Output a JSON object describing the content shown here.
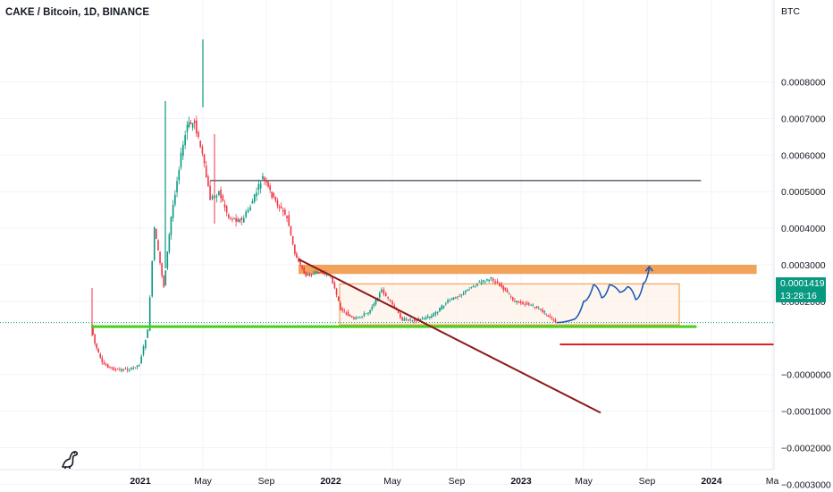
{
  "header": {
    "title": "CAKE / Bitcoin, 1D, BINANCE",
    "unit": "BTC"
  },
  "price_tag": {
    "price": "0.0001419",
    "countdown": "13:28:16",
    "color": "#089981"
  },
  "colors": {
    "up": "#089981",
    "down": "#f23645",
    "support": "#4cce1a",
    "resistance_band": "#f0923c",
    "trendline": "#8b1a1a",
    "projection": "#1c58b8",
    "red_line": "#e0201e",
    "resistance_line": "#131722"
  },
  "chart_data": {
    "type": "candlestick",
    "title": "CAKE / Bitcoin, 1D, BINANCE",
    "ylabel": "BTC",
    "ylim": [
      -0.00036,
      0.00092
    ],
    "grid": true,
    "xlabels": [
      "2021",
      "May",
      "Sep",
      "2022",
      "May",
      "Sep",
      "2023",
      "May",
      "Sep",
      "2024",
      "Ma"
    ],
    "xlabels_bold": [
      "2021",
      "2022",
      "2023",
      "2024"
    ],
    "yticks": [
      0.0008,
      0.0007,
      0.0006,
      0.0005,
      0.0004,
      0.0003,
      0.0002,
      0.0,
      -0.0001,
      -0.0002,
      -0.0003
    ],
    "ytick_labels": [
      "0.0008000",
      "0.0007000",
      "0.0006000",
      "0.0005000",
      "0.0004000",
      "0.0003000",
      "0.0002000",
      "−0.0000000",
      "−0.0001000",
      "−0.0002000",
      "−0.0003000"
    ],
    "price_path": [
      [
        "2020-09-29",
        0.000135
      ],
      [
        "2020-10-06",
        8.5e-05
      ],
      [
        "2020-10-20",
        3e-05
      ],
      [
        "2020-11-15",
        1.2e-05
      ],
      [
        "2020-12-15",
        1.5e-05
      ],
      [
        "2020-12-30",
        2.8e-05
      ],
      [
        "2021-01-15",
        0.00012
      ],
      [
        "2021-01-28",
        0.0004
      ],
      [
        "2021-02-15",
        0.00024
      ],
      [
        "2021-03-01",
        0.00043
      ],
      [
        "2021-03-20",
        0.0006
      ],
      [
        "2021-04-01",
        0.00068
      ],
      [
        "2021-04-15",
        0.00069
      ],
      [
        "2021-04-30",
        0.0006
      ],
      [
        "2021-05-15",
        0.00048
      ],
      [
        "2021-06-01",
        0.0005
      ],
      [
        "2021-06-20",
        0.00043
      ],
      [
        "2021-07-15",
        0.00042
      ],
      [
        "2021-08-01",
        0.00046
      ],
      [
        "2021-08-25",
        0.00054
      ],
      [
        "2021-09-15",
        0.00048
      ],
      [
        "2021-10-10",
        0.00043
      ],
      [
        "2021-10-25",
        0.00033
      ],
      [
        "2021-11-15",
        0.00027
      ],
      [
        "2021-12-10",
        0.00028
      ],
      [
        "2022-01-01",
        0.00027
      ],
      [
        "2022-01-20",
        0.00018
      ],
      [
        "2022-02-15",
        0.00015
      ],
      [
        "2022-03-15",
        0.00017
      ],
      [
        "2022-04-10",
        0.00023
      ],
      [
        "2022-05-01",
        0.00019
      ],
      [
        "2022-05-20",
        0.00015
      ],
      [
        "2022-06-20",
        0.00015
      ],
      [
        "2022-07-15",
        0.00016
      ],
      [
        "2022-08-15",
        0.0002
      ],
      [
        "2022-09-10",
        0.00022
      ],
      [
        "2022-10-10",
        0.00025
      ],
      [
        "2022-11-05",
        0.000262
      ],
      [
        "2022-11-25",
        0.00024
      ],
      [
        "2022-12-20",
        0.0002
      ],
      [
        "2023-01-20",
        0.00019
      ],
      [
        "2023-02-15",
        0.00017
      ],
      [
        "2023-03-08",
        0.000142
      ]
    ],
    "trendline": [
      [
        "2021-11-01",
        0.00033
      ],
      [
        "2023-05-20",
        -8e-05
      ]
    ],
    "horizontal_resistance": {
      "from": "2021-05-01",
      "to": "2023-10-31",
      "value": 0.00053
    },
    "resistance_zone": {
      "from": "2021-11-01",
      "to": "2024-03-31",
      "low": 0.000275,
      "high": 0.0003
    },
    "support_line": {
      "from": "2020-09-29",
      "to": "2023-10-31",
      "value": 0.000136
    },
    "consolidation_range": {
      "from": "2022-01-01",
      "to": "2023-11-01",
      "low": 0.000136,
      "high": 0.000248
    },
    "red_line": {
      "from": "2023-03-25",
      "to": "2024-03-31",
      "value": 8e-05
    },
    "projection": [
      [
        "2023-03-10",
        0.000142
      ],
      [
        "2023-04-10",
        0.00015
      ],
      [
        "2023-05-01",
        0.0002
      ],
      [
        "2023-05-20",
        0.000245
      ],
      [
        "2023-06-05",
        0.00021
      ],
      [
        "2023-06-20",
        0.000245
      ],
      [
        "2023-07-10",
        0.000225
      ],
      [
        "2023-07-25",
        0.00024
      ],
      [
        "2023-08-10",
        0.000205
      ],
      [
        "2023-08-25",
        0.00025
      ],
      [
        "2023-09-05",
        0.00029
      ]
    ]
  }
}
